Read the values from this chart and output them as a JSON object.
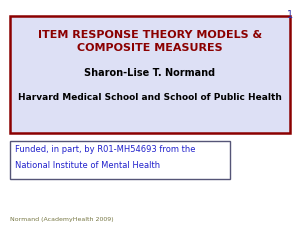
{
  "title_line1": "ITEM RESPONSE THEORY MODELS &",
  "title_line2": "COMPOSITE MEASURES",
  "author": "Sharon-Lise T. Normand",
  "institution": "Harvard Medical School and School of Public Health",
  "funding_line1": "Funded, in part, by R01-MH54693 from the",
  "funding_line2": "National Institute of Mental Health",
  "footer": "Normand (AcademyHealth 2009)",
  "slide_number": "1",
  "bg_color": "#ffffff",
  "main_box_bg": "#dde0f5",
  "main_box_edge": "#8b0000",
  "funding_box_bg": "#ffffff",
  "funding_box_edge": "#555577",
  "title_color": "#8b0000",
  "author_color": "#000000",
  "institution_color": "#000000",
  "funding_color": "#2222cc",
  "footer_color": "#777744",
  "slide_num_color": "#3333aa"
}
